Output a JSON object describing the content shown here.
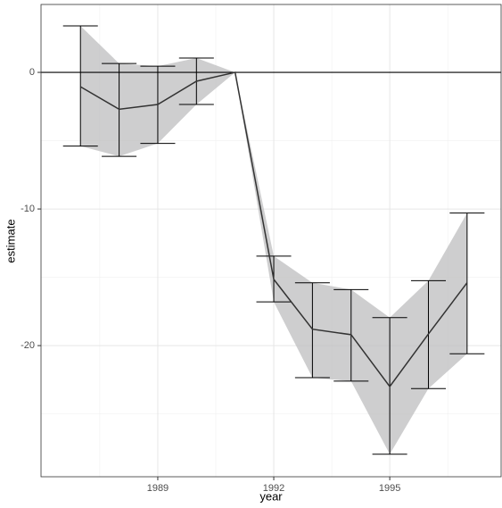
{
  "chart_data": {
    "type": "line",
    "x_label": "year",
    "y_label": "estimate",
    "x": [
      1987,
      1988,
      1989,
      1990,
      1991,
      1992,
      1993,
      1994,
      1995,
      1996,
      1997
    ],
    "values": [
      -1.05,
      -2.7,
      -2.35,
      -0.65,
      0,
      -15.15,
      -18.8,
      -19.2,
      -23.0,
      -19.15,
      -15.4
    ],
    "lower": [
      -5.4,
      -6.15,
      -5.2,
      -2.35,
      0,
      -16.8,
      -22.35,
      -22.6,
      -27.95,
      -23.15,
      -20.6
    ],
    "upper": [
      3.4,
      0.65,
      0.45,
      1.05,
      0,
      -13.45,
      -15.4,
      -15.9,
      -17.95,
      -15.25,
      -10.3
    ],
    "color": "#333333",
    "band_color": "#bdbdbf",
    "hline": 0,
    "xlim": [
      1985.98,
      1997.88
    ],
    "xticks": [
      1989,
      1992,
      1995
    ],
    "minor_xticks": [
      1987.5,
      1990.5,
      1993.5,
      1996.5
    ],
    "ylim": [
      -29.6,
      4.97
    ],
    "yticks": [
      -20,
      -10,
      0
    ],
    "minor_yticks": [
      -25,
      -15,
      -5
    ],
    "grid": true
  }
}
